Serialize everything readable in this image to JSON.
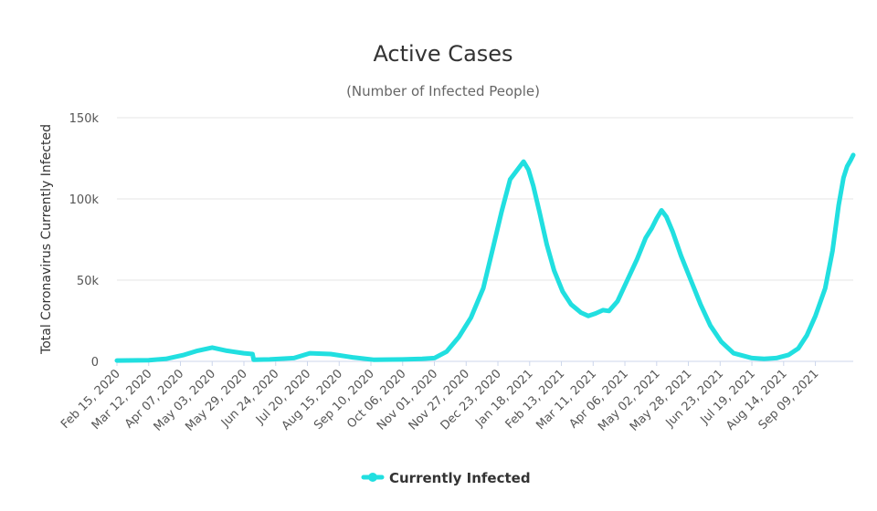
{
  "chart_data": {
    "type": "line",
    "title": "Active Cases",
    "subtitle": "(Number of Infected People)",
    "ylabel": "Total Coronavirus Currently Infected",
    "xlabel": "",
    "ylim": [
      0,
      150000
    ],
    "yticks": [
      0,
      50000,
      100000,
      150000
    ],
    "ytick_labels": [
      "0",
      "50k",
      "100k",
      "150k"
    ],
    "x_start": "Feb 15, 2020",
    "x_end": "Oct 10, 2021",
    "x_span_days": 603,
    "xtick_labels": [
      "Feb 15, 2020",
      "Mar 12, 2020",
      "Apr 07, 2020",
      "May 03, 2020",
      "May 29, 2020",
      "Jun 24, 2020",
      "Jul 20, 2020",
      "Aug 15, 2020",
      "Sep 10, 2020",
      "Oct 06, 2020",
      "Nov 01, 2020",
      "Nov 27, 2020",
      "Dec 23, 2020",
      "Jan 18, 2021",
      "Feb 13, 2021",
      "Mar 11, 2021",
      "Apr 06, 2021",
      "May 02, 2021",
      "May 28, 2021",
      "Jun 23, 2021",
      "Jul 19, 2021",
      "Aug 14, 2021",
      "Sep 09, 2021"
    ],
    "series": [
      {
        "name": "Currently Infected",
        "color": "#21dfe0",
        "points": [
          [
            0,
            500
          ],
          [
            26,
            700
          ],
          [
            40,
            1500
          ],
          [
            55,
            4000
          ],
          [
            66,
            6500
          ],
          [
            78,
            8500
          ],
          [
            90,
            6500
          ],
          [
            104,
            5000
          ],
          [
            111,
            4500
          ],
          [
            112,
            1000
          ],
          [
            125,
            1200
          ],
          [
            145,
            2000
          ],
          [
            158,
            5000
          ],
          [
            175,
            4500
          ],
          [
            193,
            2500
          ],
          [
            210,
            1000
          ],
          [
            234,
            1200
          ],
          [
            250,
            1500
          ],
          [
            260,
            2000
          ],
          [
            270,
            6000
          ],
          [
            280,
            15000
          ],
          [
            290,
            27000
          ],
          [
            300,
            45000
          ],
          [
            308,
            70000
          ],
          [
            315,
            92000
          ],
          [
            322,
            112000
          ],
          [
            328,
            118000
          ],
          [
            333,
            123000
          ],
          [
            337,
            118000
          ],
          [
            341,
            108000
          ],
          [
            346,
            92000
          ],
          [
            352,
            72000
          ],
          [
            358,
            56000
          ],
          [
            365,
            43000
          ],
          [
            372,
            35000
          ],
          [
            380,
            30000
          ],
          [
            386,
            28000
          ],
          [
            392,
            29500
          ],
          [
            398,
            31500
          ],
          [
            403,
            31000
          ],
          [
            410,
            37000
          ],
          [
            418,
            50000
          ],
          [
            426,
            63000
          ],
          [
            433,
            76000
          ],
          [
            438,
            82000
          ],
          [
            442,
            88000
          ],
          [
            446,
            93000
          ],
          [
            450,
            89000
          ],
          [
            455,
            80000
          ],
          [
            462,
            65000
          ],
          [
            470,
            50000
          ],
          [
            478,
            35000
          ],
          [
            486,
            22000
          ],
          [
            495,
            12000
          ],
          [
            505,
            5000
          ],
          [
            520,
            2000
          ],
          [
            530,
            1500
          ],
          [
            540,
            2000
          ],
          [
            550,
            4000
          ],
          [
            558,
            8000
          ],
          [
            565,
            16000
          ],
          [
            572,
            28000
          ],
          [
            580,
            45000
          ],
          [
            586,
            68000
          ],
          [
            591,
            96000
          ],
          [
            595,
            113000
          ],
          [
            598,
            120000
          ],
          [
            601,
            124000
          ],
          [
            603,
            127000
          ]
        ]
      }
    ],
    "legend": "bottom-center",
    "grid": true
  }
}
